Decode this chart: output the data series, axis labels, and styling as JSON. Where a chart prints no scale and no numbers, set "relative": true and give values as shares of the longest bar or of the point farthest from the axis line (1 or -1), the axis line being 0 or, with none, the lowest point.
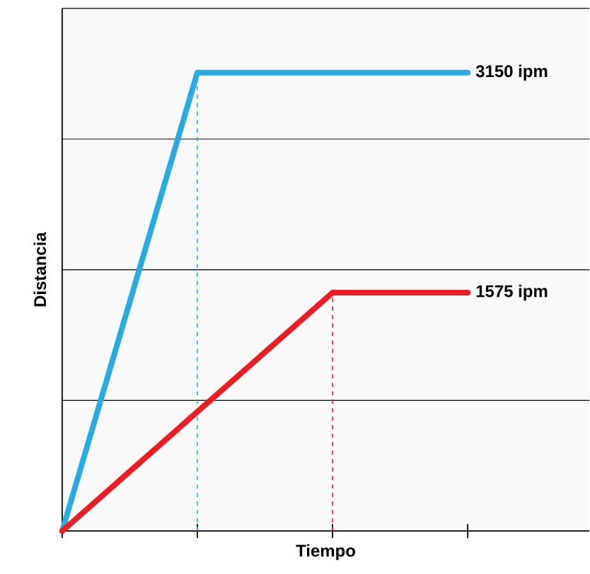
{
  "chart_data": {
    "type": "line",
    "relative": true,
    "xlabel": "Tiempo",
    "ylabel": "Distancia",
    "categories": [
      null,
      null,
      null,
      null
    ],
    "tick_labels": false,
    "grid": "y",
    "legend": false,
    "marker": "none",
    "line_style": "solid",
    "series": [
      {
        "name": "3150 ipm",
        "color": "#29abe2",
        "values": [
          0,
          1,
          1,
          1
        ]
      },
      {
        "name": "1575 ipm",
        "color": "#ed1c24",
        "values": [
          0,
          0.26,
          0.52,
          0.52
        ]
      }
    ]
  }
}
